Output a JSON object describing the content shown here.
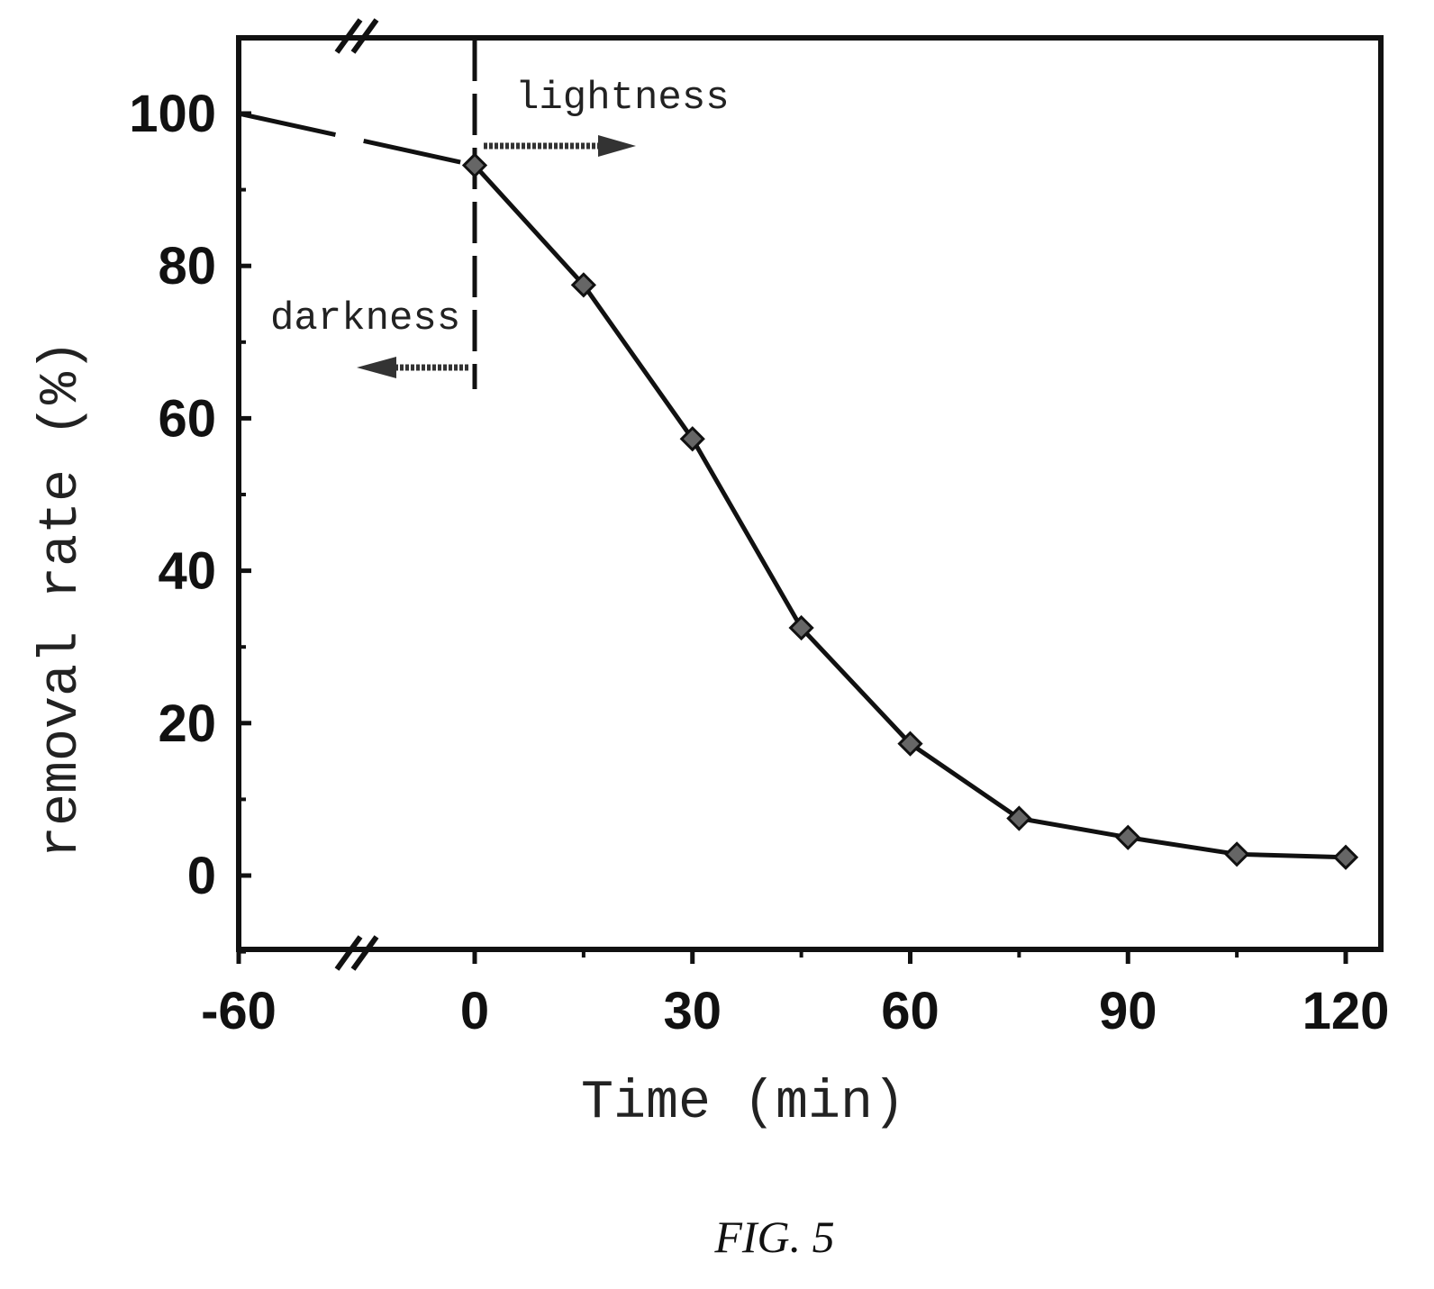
{
  "chart_data": {
    "type": "line",
    "title": "",
    "xlabel": "Time (min)",
    "ylabel": "removal rate (%)",
    "x_ticks": [
      "-60",
      "0",
      "30",
      "60",
      "90",
      "120"
    ],
    "y_ticks": [
      "0",
      "20",
      "40",
      "60",
      "80",
      "100"
    ],
    "xlim": [
      -60,
      120
    ],
    "ylim": [
      -10,
      110
    ],
    "axis_break": "between -60 and 0",
    "series": [
      {
        "x": [
          -60,
          0,
          15,
          30,
          45,
          60,
          75,
          90,
          105,
          120
        ],
        "y": [
          100,
          93.2,
          77.5,
          57.3,
          32.5,
          17.3,
          7.5,
          5,
          2.8,
          2.4
        ],
        "marker": "diamond",
        "color": "#111111"
      }
    ],
    "annotations": {
      "lightness": "lightness",
      "darkness": "darkness"
    },
    "grid": false,
    "legend": "none"
  },
  "caption": "FIG. 5"
}
